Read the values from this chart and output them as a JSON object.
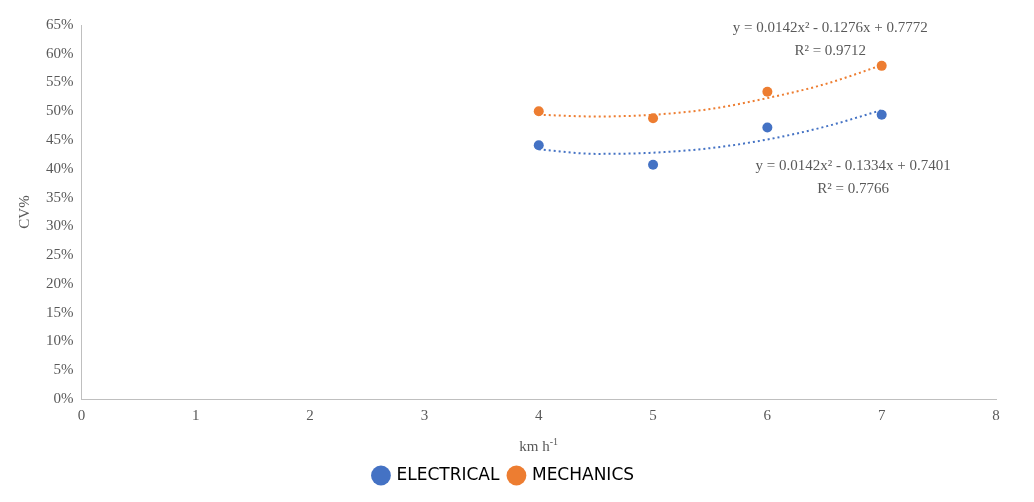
{
  "chart_data": {
    "type": "scatter",
    "xlabel": "km h$^{-1}$",
    "ylabel": "CV%",
    "xlim": [
      0,
      8
    ],
    "xticks": [
      0,
      1,
      2,
      3,
      4,
      5,
      6,
      7,
      8
    ],
    "ylim": [
      0,
      65
    ],
    "yticks": [
      {
        "value": 0,
        "label": "0%"
      },
      {
        "value": 5,
        "label": "5%"
      },
      {
        "value": 10,
        "label": "10%"
      },
      {
        "value": 15,
        "label": "15%"
      },
      {
        "value": 20,
        "label": "20%"
      },
      {
        "value": 25,
        "label": "25%"
      },
      {
        "value": 30,
        "label": "30%"
      },
      {
        "value": 35,
        "label": "35%"
      },
      {
        "value": 40,
        "label": "40%"
      },
      {
        "value": 45,
        "label": "45%"
      },
      {
        "value": 50,
        "label": "50%"
      },
      {
        "value": 55,
        "label": "55%"
      },
      {
        "value": 60,
        "label": "60%"
      },
      {
        "value": 65,
        "label": "65%"
      }
    ],
    "grid": false,
    "legend": "bottom",
    "marker": "circle",
    "series": [
      {
        "name": "ELECTRICAL",
        "color": "#4472c4",
        "x": [
          4,
          5,
          6,
          7
        ],
        "values": [
          44.1,
          40.7,
          47.2,
          49.4
        ]
      },
      {
        "name": "MECHANICS",
        "color": "#ed7d31",
        "x": [
          4,
          5,
          6,
          7
        ],
        "values": [
          50.0,
          48.8,
          53.4,
          57.9
        ]
      },
      {
        "type": "line",
        "line_style": "dotted",
        "marker": "none",
        "color": "#4472c4",
        "x": [
          4,
          4.5,
          5,
          5.5,
          6,
          6.5,
          7
        ],
        "values": [
          43.4,
          42.6,
          42.8,
          43.6,
          45.1,
          47.3,
          50.2
        ]
      },
      {
        "type": "line",
        "line_style": "dotted",
        "marker": "none",
        "color": "#ed7d31",
        "x": [
          4,
          4.5,
          5,
          5.5,
          6,
          6.5,
          7
        ],
        "values": [
          49.4,
          49.1,
          49.4,
          50.4,
          52.3,
          54.7,
          58.0
        ]
      }
    ],
    "annotations": [
      "y = 0.0142x² - 0.1276x + 0.7772",
      "R² = 0.9712",
      "y = 0.0142x² - 0.1334x + 0.7401",
      "R² = 0.7766"
    ]
  }
}
